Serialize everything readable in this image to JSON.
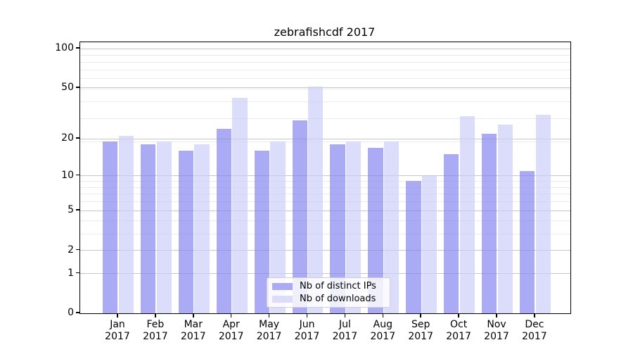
{
  "title": "zebrafishcdf 2017",
  "colors": {
    "ips_solid": "#aaaaf5",
    "ips_fill": "rgba(134,134,241,0.7)",
    "downloads_solid": "#dcdcfa",
    "downloads_fill": "rgba(205,205,249,0.7)",
    "grid_major": "#c6c6c6",
    "grid_minor": "#ebebeb",
    "axis": "#000000"
  },
  "y_axis": {
    "tick_values": [
      0,
      1,
      2,
      5,
      10,
      20,
      50,
      100
    ]
  },
  "x_axis": {
    "months": [
      "Jan",
      "Feb",
      "Mar",
      "Apr",
      "May",
      "Jun",
      "Jul",
      "Aug",
      "Sep",
      "Oct",
      "Nov",
      "Dec"
    ],
    "year": "2017"
  },
  "chart_data": {
    "type": "bar",
    "title": "zebrafishcdf 2017",
    "categories": [
      "Jan 2017",
      "Feb 2017",
      "Mar 2017",
      "Apr 2017",
      "May 2017",
      "Jun 2017",
      "Jul 2017",
      "Aug 2017",
      "Sep 2017",
      "Oct 2017",
      "Nov 2017",
      "Dec 2017"
    ],
    "series": [
      {
        "name": "Nb of distinct IPs",
        "values": [
          19,
          18,
          16,
          24,
          16,
          28,
          18,
          17,
          9,
          15,
          22,
          11
        ]
      },
      {
        "name": "Nb of downloads",
        "values": [
          21,
          19,
          18,
          42,
          19,
          51,
          19,
          19,
          10,
          30,
          26,
          31
        ]
      }
    ],
    "yscale": "log(value+1)",
    "y_ticks": [
      0,
      1,
      2,
      5,
      10,
      20,
      50,
      100
    ],
    "y_minor_gridlines": [
      3,
      4,
      6,
      7,
      8,
      9,
      19,
      29,
      39,
      49,
      59,
      69,
      79,
      89
    ],
    "ylim": [
      0,
      112
    ],
    "grid": "horizontal major+minor",
    "legend_position": "lower center"
  }
}
